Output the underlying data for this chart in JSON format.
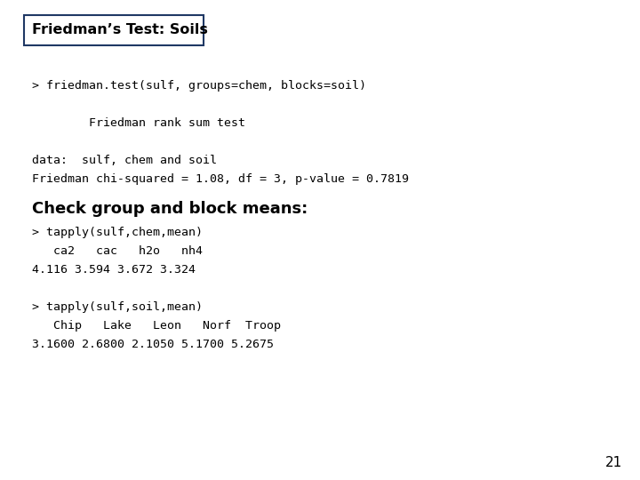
{
  "title": "Friedman’s Test: Soils",
  "bg_color": "#ffffff",
  "title_box_color": "#1f3864",
  "title_bg": "#ffffff",
  "body_lines": [
    "> friedman.test(sulf, groups=chem, blocks=soil)",
    "",
    "        Friedman rank sum test",
    "",
    "data:  sulf, chem and soil",
    "Friedman chi-squared = 1.08, df = 3, p-value = 0.7819"
  ],
  "subheading": "Check group and block means:",
  "body2_lines": [
    "> tapply(sulf,chem,mean)",
    "   ca2   cac   h2o   nh4",
    "4.116 3.594 3.672 3.324",
    "",
    "> tapply(sulf,soil,mean)",
    "   Chip   Lake   Leon   Norf  Troop",
    "3.1600 2.6800 2.1050 5.1700 5.2675"
  ],
  "page_number": "21",
  "mono_fontsize": 9.5,
  "title_fontsize": 11.5,
  "subheading_fontsize": 13
}
